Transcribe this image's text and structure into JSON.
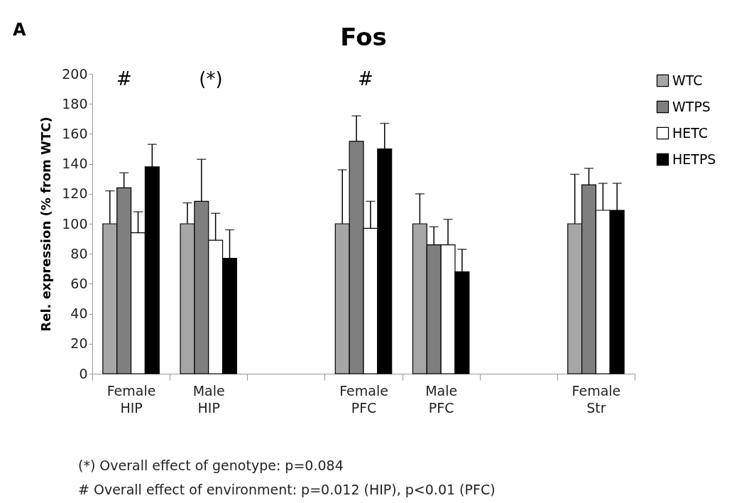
{
  "chart_data": {
    "type": "bar",
    "title": "Fos",
    "ylabel": "Rel. expression (% from WTC)",
    "categories": [
      "Female HIP",
      "Male HIP",
      null,
      "Female PFC",
      "Male PFC",
      null,
      "Female Str"
    ],
    "series": [
      {
        "name": "WTC",
        "color": "#a6a6a6",
        "values": [
          100,
          100,
          null,
          100,
          100,
          null,
          100
        ],
        "errors": [
          [
            100,
            122
          ],
          [
            100,
            114
          ],
          null,
          [
            100,
            136
          ],
          [
            100,
            120
          ],
          null,
          [
            100,
            133
          ]
        ]
      },
      {
        "name": "WTPS",
        "color": "#7f7f7f",
        "values": [
          124,
          115,
          null,
          155,
          86,
          null,
          126
        ],
        "errors": [
          [
            124,
            134
          ],
          [
            115,
            143
          ],
          null,
          [
            155,
            172
          ],
          [
            86,
            98
          ],
          null,
          [
            126,
            137
          ]
        ]
      },
      {
        "name": "HETC",
        "color": "#ffffff",
        "values": [
          94,
          89,
          null,
          97,
          86,
          null,
          109
        ],
        "errors": [
          [
            94,
            108
          ],
          [
            89,
            107
          ],
          null,
          [
            97,
            115
          ],
          [
            86,
            103
          ],
          null,
          [
            109,
            127
          ]
        ]
      },
      {
        "name": "HETPS",
        "color": "#000000",
        "values": [
          138,
          77,
          null,
          150,
          68,
          null,
          109
        ],
        "errors": [
          [
            138,
            153
          ],
          [
            77,
            96
          ],
          null,
          [
            150,
            167
          ],
          [
            68,
            83
          ],
          null,
          [
            109,
            127
          ]
        ]
      }
    ],
    "ylim": [
      0,
      200
    ],
    "yticks": [
      0,
      20,
      40,
      60,
      80,
      100,
      120,
      140,
      160,
      180,
      200
    ],
    "grid": false,
    "legend": "right",
    "annotations": [
      "A",
      "#",
      "(*)",
      "#",
      "(*) Overall effect of genotype: p=0.084",
      "#  Overall effect of environment: p=0.012 (HIP), p<0.01 (PFC)"
    ]
  }
}
